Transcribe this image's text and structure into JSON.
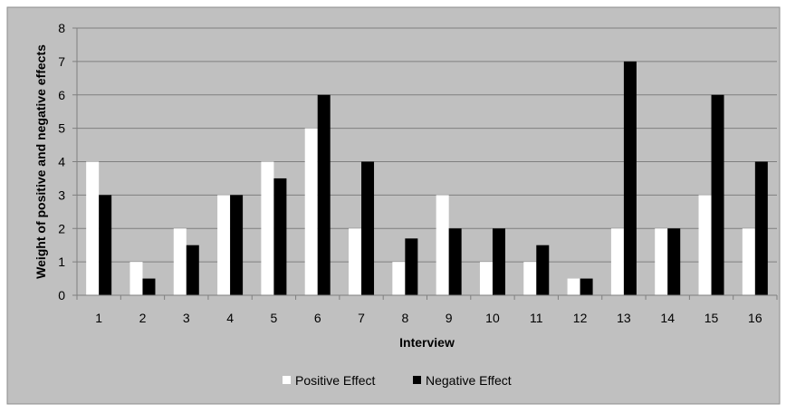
{
  "chart_data": {
    "type": "bar",
    "xlabel": "Interview",
    "ylabel": "Weight of positive and negative effects",
    "ylim": [
      0,
      8
    ],
    "yticks": [
      "0",
      "1",
      "2",
      "3",
      "4",
      "5",
      "6",
      "7",
      "8"
    ],
    "grid": true,
    "legend_position": "bottom",
    "categories": [
      "1",
      "2",
      "3",
      "4",
      "5",
      "6",
      "7",
      "8",
      "9",
      "10",
      "11",
      "12",
      "13",
      "14",
      "15",
      "16"
    ],
    "series": [
      {
        "name": "Positive Effect",
        "color": "#ffffff",
        "values": [
          4,
          1,
          2,
          3,
          4,
          5,
          2,
          1,
          3,
          1,
          1,
          0.5,
          2,
          2,
          3,
          2
        ]
      },
      {
        "name": "Negative Effect",
        "color": "#000000",
        "values": [
          3,
          0.5,
          1.5,
          3,
          3.5,
          6,
          4,
          1.7,
          2,
          2,
          1.5,
          0.5,
          7,
          2,
          6,
          4
        ]
      }
    ],
    "colors": {
      "background": "#c0c0c0",
      "gridline": "#7f7f7f"
    }
  }
}
